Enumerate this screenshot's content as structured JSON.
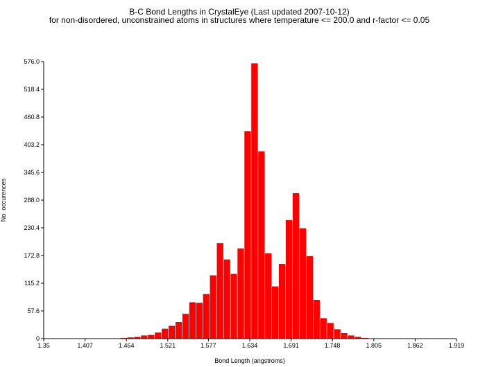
{
  "chart_data": {
    "type": "bar",
    "title": "B-C Bond Lengths in CrystalEye (Last updated 2007-10-12)",
    "subtitle": "for non-disordered, unconstrained atoms in structures where temperature <= 200.0 and r-factor <= 0.05",
    "xlabel": "Bond Length (angstroms)",
    "ylabel": "No. occurences",
    "xlim": [
      1.35,
      1.919
    ],
    "ylim": [
      0,
      576.0
    ],
    "x_ticks": [
      "1.35",
      "1.407",
      "1.464",
      "1.521",
      "1.577",
      "1.634",
      "1.691",
      "1.748",
      "1.805",
      "1.862",
      "1.919"
    ],
    "y_ticks": [
      "0",
      "57.6",
      "115.2",
      "172.8",
      "230.4",
      "288.0",
      "345.6",
      "403.2",
      "460.8",
      "518.4",
      "576.0"
    ],
    "grid": false,
    "bar_color": "#ff0000",
    "bins": [
      {
        "x": 1.4507,
        "value": 1
      },
      {
        "x": 1.4602,
        "value": 2
      },
      {
        "x": 1.4697,
        "value": 3
      },
      {
        "x": 1.4792,
        "value": 4
      },
      {
        "x": 1.4886,
        "value": 7
      },
      {
        "x": 1.4981,
        "value": 8
      },
      {
        "x": 1.5076,
        "value": 13
      },
      {
        "x": 1.5171,
        "value": 21
      },
      {
        "x": 1.5266,
        "value": 27
      },
      {
        "x": 1.5361,
        "value": 35
      },
      {
        "x": 1.5456,
        "value": 52
      },
      {
        "x": 1.5551,
        "value": 76
      },
      {
        "x": 1.5646,
        "value": 75
      },
      {
        "x": 1.5741,
        "value": 93
      },
      {
        "x": 1.5836,
        "value": 132
      },
      {
        "x": 1.5931,
        "value": 199
      },
      {
        "x": 1.6026,
        "value": 165
      },
      {
        "x": 1.6121,
        "value": 135
      },
      {
        "x": 1.6216,
        "value": 188
      },
      {
        "x": 1.6311,
        "value": 432
      },
      {
        "x": 1.6406,
        "value": 573
      },
      {
        "x": 1.6501,
        "value": 390
      },
      {
        "x": 1.6596,
        "value": 178
      },
      {
        "x": 1.6691,
        "value": 109
      },
      {
        "x": 1.6786,
        "value": 156
      },
      {
        "x": 1.6881,
        "value": 247
      },
      {
        "x": 1.6976,
        "value": 303
      },
      {
        "x": 1.7071,
        "value": 230
      },
      {
        "x": 1.7166,
        "value": 172
      },
      {
        "x": 1.7261,
        "value": 81
      },
      {
        "x": 1.7356,
        "value": 43
      },
      {
        "x": 1.7451,
        "value": 33
      },
      {
        "x": 1.7546,
        "value": 20
      },
      {
        "x": 1.7641,
        "value": 12
      },
      {
        "x": 1.7736,
        "value": 7
      },
      {
        "x": 1.7831,
        "value": 4
      },
      {
        "x": 1.7926,
        "value": 2
      }
    ]
  }
}
